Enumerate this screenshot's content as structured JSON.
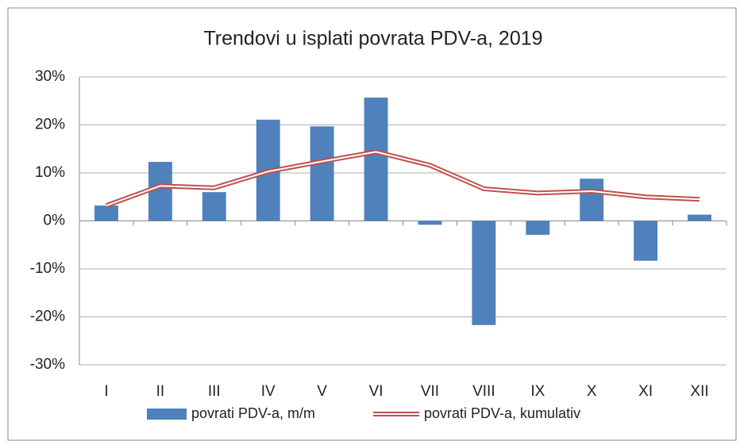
{
  "chart_data": {
    "type": "bar_line",
    "title": "Trendovi u isplati povrata PDV-a, 2019",
    "categories": [
      "I",
      "II",
      "III",
      "IV",
      "V",
      "VI",
      "VII",
      "VIII",
      "IX",
      "X",
      "XI",
      "XII"
    ],
    "series": [
      {
        "name": "povrati PDV-a, m/m",
        "type": "bar",
        "color": "#4f81bd",
        "values": [
          3.2,
          12.3,
          6.0,
          21.1,
          19.7,
          25.7,
          -0.8,
          -21.7,
          -2.9,
          8.8,
          -8.3,
          1.3
        ]
      },
      {
        "name": "povrati PDV-a, kumulativ",
        "type": "line",
        "color": "#c0504d",
        "values": [
          3.2,
          7.3,
          6.9,
          10.3,
          12.4,
          14.4,
          11.6,
          6.7,
          5.8,
          6.2,
          5.0,
          4.5
        ]
      }
    ],
    "ylim": [
      -30,
      30
    ],
    "yticks": [
      {
        "value": -30,
        "label": "-30%"
      },
      {
        "value": -20,
        "label": "-20%"
      },
      {
        "value": -10,
        "label": "-10%"
      },
      {
        "value": 0,
        "label": "0%"
      },
      {
        "value": 10,
        "label": "10%"
      },
      {
        "value": 20,
        "label": "20%"
      },
      {
        "value": 30,
        "label": "30%"
      }
    ],
    "grid": true,
    "legend": "bottom"
  }
}
